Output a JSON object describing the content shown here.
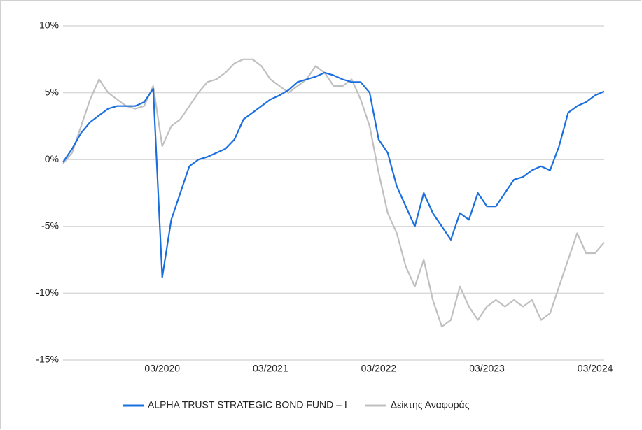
{
  "chart_data": {
    "type": "line",
    "x": [
      "04/2019",
      "05/2019",
      "06/2019",
      "07/2019",
      "08/2019",
      "09/2019",
      "10/2019",
      "11/2019",
      "12/2019",
      "01/2020",
      "02/2020",
      "03/2020",
      "04/2020",
      "05/2020",
      "06/2020",
      "07/2020",
      "08/2020",
      "09/2020",
      "10/2020",
      "11/2020",
      "12/2020",
      "01/2021",
      "02/2021",
      "03/2021",
      "04/2021",
      "05/2021",
      "06/2021",
      "07/2021",
      "08/2021",
      "09/2021",
      "10/2021",
      "11/2021",
      "12/2021",
      "01/2022",
      "02/2022",
      "03/2022",
      "04/2022",
      "05/2022",
      "06/2022",
      "07/2022",
      "08/2022",
      "09/2022",
      "10/2022",
      "11/2022",
      "12/2022",
      "01/2023",
      "02/2023",
      "03/2023",
      "04/2023",
      "05/2023",
      "06/2023",
      "07/2023",
      "08/2023",
      "09/2023",
      "10/2023",
      "11/2023",
      "12/2023",
      "01/2024",
      "02/2024",
      "03/2024",
      "04/2024"
    ],
    "series": [
      {
        "name": "ALPHA TRUST STRATEGIC BOND FUND – I",
        "color": "#1a6fdf",
        "values": [
          -0.2,
          0.8,
          2.0,
          2.8,
          3.3,
          3.8,
          4.0,
          4.0,
          4.0,
          4.3,
          5.3,
          -8.8,
          -4.5,
          -2.5,
          -0.5,
          0,
          0.2,
          0.5,
          0.8,
          1.5,
          3.0,
          3.5,
          4.0,
          4.5,
          4.8,
          5.2,
          5.8,
          6.0,
          6.2,
          6.5,
          6.3,
          6.0,
          5.8,
          5.8,
          5.0,
          1.5,
          0.5,
          -2.0,
          -3.5,
          -5.0,
          -2.5,
          -4.0,
          -5.0,
          -6.0,
          -4.0,
          -4.5,
          -2.5,
          -3.5,
          -3.5,
          -2.5,
          -1.5,
          -1.3,
          -0.8,
          -0.5,
          -0.8,
          1.0,
          3.5,
          4.0,
          4.3,
          4.8,
          5.1
        ]
      },
      {
        "name": "Δείκτης Αναφοράς",
        "color": "#c0c0c0",
        "values": [
          -0.3,
          0.5,
          2.5,
          4.5,
          6.0,
          5.0,
          4.5,
          4.0,
          3.8,
          4.0,
          5.5,
          1.0,
          2.5,
          3.0,
          4.0,
          5.0,
          5.8,
          6.0,
          6.5,
          7.2,
          7.5,
          7.5,
          7.0,
          6.0,
          5.5,
          5.0,
          5.5,
          6.0,
          7.0,
          6.5,
          5.5,
          5.5,
          6.0,
          4.5,
          2.5,
          -1.0,
          -4.0,
          -5.5,
          -8.0,
          -9.5,
          -7.5,
          -10.5,
          -12.5,
          -12.0,
          -9.5,
          -11.0,
          -12.0,
          -11.0,
          -10.5,
          -11.0,
          -10.5,
          -11.0,
          -10.5,
          -12.0,
          -11.5,
          -9.5,
          -7.5,
          -5.5,
          -7.0,
          -7.0,
          -6.2
        ]
      }
    ],
    "xticks": [
      "03/2020",
      "03/2021",
      "03/2022",
      "03/2023",
      "03/2024"
    ],
    "ylim": [
      -15,
      10
    ],
    "yticks": [
      {
        "value": -15,
        "label": "-15%"
      },
      {
        "value": -10,
        "label": "-10%"
      },
      {
        "value": -5,
        "label": "-5%"
      },
      {
        "value": 0,
        "label": "0%"
      },
      {
        "value": 5,
        "label": "5%"
      },
      {
        "value": 10,
        "label": "10%"
      }
    ],
    "grid": true
  }
}
